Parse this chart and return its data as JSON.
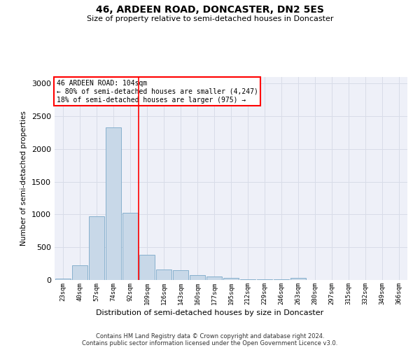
{
  "title": "46, ARDEEN ROAD, DONCASTER, DN2 5ES",
  "subtitle": "Size of property relative to semi-detached houses in Doncaster",
  "xlabel": "Distribution of semi-detached houses by size in Doncaster",
  "ylabel": "Number of semi-detached properties",
  "categories": [
    "23sqm",
    "40sqm",
    "57sqm",
    "74sqm",
    "92sqm",
    "109sqm",
    "126sqm",
    "143sqm",
    "160sqm",
    "177sqm",
    "195sqm",
    "212sqm",
    "229sqm",
    "246sqm",
    "263sqm",
    "280sqm",
    "297sqm",
    "315sqm",
    "332sqm",
    "349sqm",
    "366sqm"
  ],
  "values": [
    20,
    220,
    975,
    2330,
    1030,
    390,
    160,
    155,
    80,
    55,
    35,
    10,
    10,
    10,
    35,
    5,
    5,
    5,
    5,
    5,
    5
  ],
  "bar_color": "#c8d8e8",
  "bar_edge_color": "#7aa8c8",
  "annotation_text_line1": "46 ARDEEN ROAD: 104sqm",
  "annotation_text_line2": "← 80% of semi-detached houses are smaller (4,247)",
  "annotation_text_line3": "18% of semi-detached houses are larger (975) →",
  "red_line_x": 4.5,
  "annotation_box_color": "white",
  "annotation_box_edge_color": "red",
  "red_line_color": "red",
  "grid_color": "#d8dce8",
  "background_color": "#eef0f8",
  "ylim": [
    0,
    3100
  ],
  "footnote": "Contains HM Land Registry data © Crown copyright and database right 2024.\nContains public sector information licensed under the Open Government Licence v3.0."
}
